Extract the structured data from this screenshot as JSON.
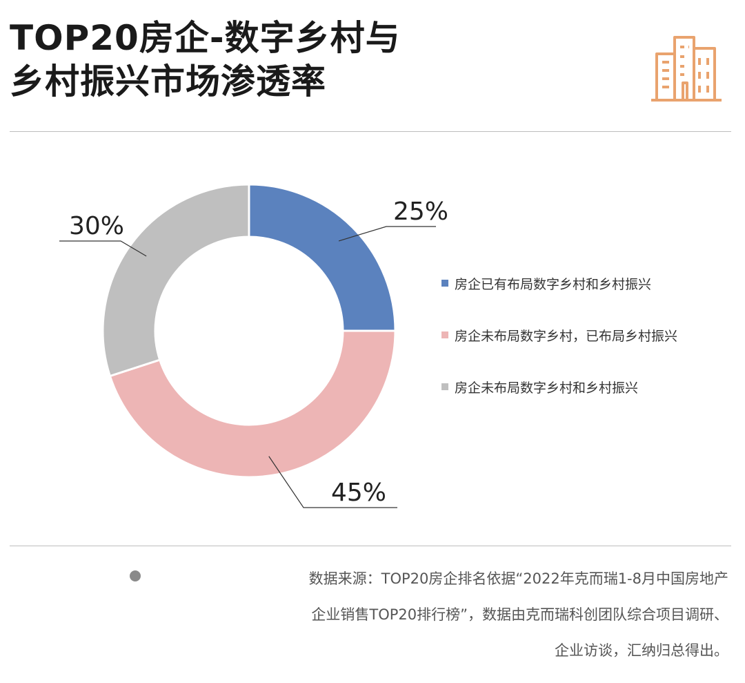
{
  "title": {
    "line1": "TOP20房企-数字乡村与",
    "line2": "乡村振兴市场渗透率"
  },
  "logo": {
    "icon": "buildings-icon",
    "color": "#E9A36E"
  },
  "chart_data": {
    "type": "pie",
    "donut": true,
    "title": "TOP20房企-数字乡村与乡村振兴市场渗透率",
    "categories": [
      "房企已有布局数字乡村和乡村振兴",
      "房企未布局数字乡村，已布局乡村振兴",
      "房企未布局数字乡村和乡村振兴"
    ],
    "values": [
      25,
      45,
      30
    ],
    "data_labels": [
      "25%",
      "45%",
      "30%"
    ],
    "colors": [
      "#5B82BE",
      "#EDB5B5",
      "#BFBFBF"
    ],
    "legend_position": "right"
  },
  "source": {
    "lines": [
      "数据来源：TOP20房企排名依据“2022年克而瑞1-8月中国房地产",
      "企业销售TOP20排行榜”，数据由克而瑞科创团队综合项目调研、",
      "企业访谈，汇纳归总得出。"
    ]
  }
}
